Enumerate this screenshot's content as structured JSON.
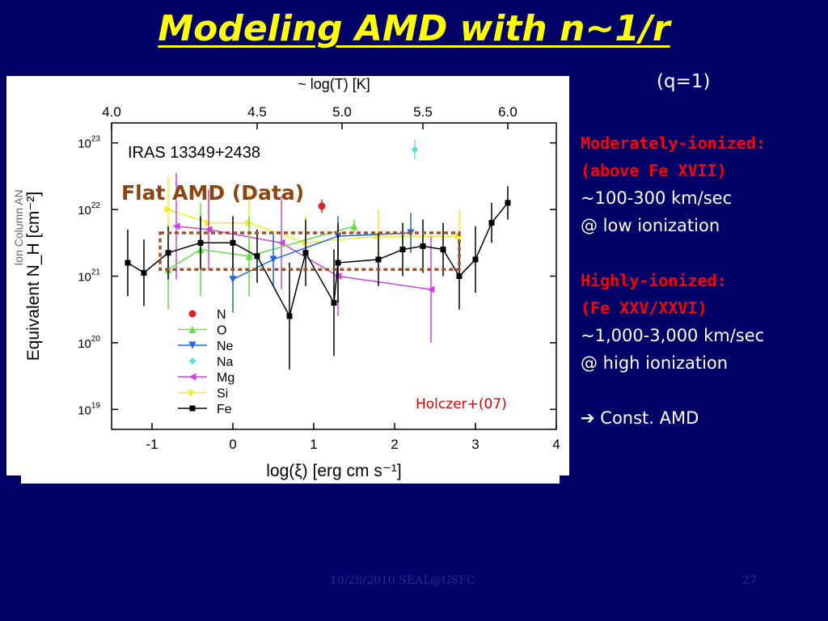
{
  "slide": {
    "title": "Modeling AMD with n~1/r",
    "q_label": "(q=1)",
    "footer_left": "10/28/2010 SEAL@GSFC",
    "footer_right": "27"
  },
  "right_text": {
    "moderate_head1": "Moderately-ionized:",
    "moderate_head2": "(above Fe XVII)",
    "moderate_speed": "~100-300 km/sec",
    "moderate_where": "@ low ionization",
    "high_head1": "Highly-ionized:",
    "high_head2": "(Fe XXV/XXVI)",
    "high_speed": "~1,000-3,000 km/sec",
    "high_where": "@ high ionization",
    "conclusion": "Const. AMD",
    "arrow_symbol": "➔"
  },
  "overlay": {
    "flat_label": "Flat AMD (Data)",
    "citation": "Holczer+(07)",
    "box_xrange": [
      -0.9,
      2.8
    ],
    "box_ylog": [
      21.1,
      21.65
    ]
  },
  "chart_data": {
    "type": "scatter",
    "title": "IRAS 13349+2438",
    "xlabel": "log(ξ) [erg cm s⁻¹]",
    "ylabel": "Equivalent  N_H [cm⁻²]",
    "ylabel_hidden": "Ion Column AN",
    "x2label": "~ log(T) [K]",
    "xlim": [
      -1.5,
      4
    ],
    "ylim_log10": [
      18.7,
      23.3
    ],
    "y_scale": "log",
    "x_ticks": [
      "-1",
      "0",
      "1",
      "2",
      "3",
      "4"
    ],
    "x_tick_values": [
      -1,
      0,
      1,
      2,
      3,
      4
    ],
    "y_ticks": [
      "10",
      "10",
      "10",
      "10",
      "10"
    ],
    "y_tick_exps": [
      "19",
      "20",
      "21",
      "22",
      "23"
    ],
    "y_tick_values": [
      19,
      20,
      21,
      22,
      23
    ],
    "x2_ticks": [
      "4.0",
      "4.5",
      "5.0",
      "5.5",
      "6.0"
    ],
    "x2_tick_xpos": [
      -1.5,
      0.3,
      1.35,
      2.35,
      3.4
    ],
    "legend_position": "bottom-left",
    "series": [
      {
        "name": "N",
        "color": "#dd2222",
        "marker": "circle",
        "points": [
          [
            1.1,
            22.05
          ]
        ],
        "err": [
          [
            0.1
          ]
        ]
      },
      {
        "name": "O",
        "color": "#66dd44",
        "marker": "triangle-up",
        "points": [
          [
            -0.8,
            21.1
          ],
          [
            -0.4,
            21.4
          ],
          [
            0.2,
            21.3
          ],
          [
            1.5,
            21.75
          ]
        ],
        "err": [
          [
            0.6
          ],
          [
            0.7
          ],
          [
            0.6
          ],
          [
            0.1
          ]
        ]
      },
      {
        "name": "Ne",
        "color": "#2266dd",
        "marker": "triangle-down",
        "points": [
          [
            0.0,
            20.95
          ],
          [
            0.5,
            21.25
          ],
          [
            1.3,
            21.6
          ],
          [
            2.2,
            21.65
          ]
        ],
        "err": [
          [
            0.5
          ],
          [
            0.4
          ],
          [
            0.3
          ],
          [
            0.3
          ]
        ]
      },
      {
        "name": "Na",
        "color": "#66dddd",
        "marker": "diamond",
        "points": [
          [
            2.25,
            22.9
          ]
        ],
        "err": [
          [
            0.15
          ]
        ]
      },
      {
        "name": "Mg",
        "color": "#cc44dd",
        "marker": "triangle-left",
        "points": [
          [
            -0.7,
            21.75
          ],
          [
            -0.3,
            21.7
          ],
          [
            0.6,
            21.5
          ],
          [
            1.3,
            21.0
          ],
          [
            2.45,
            20.8
          ]
        ],
        "err": [
          [
            0.8
          ],
          [
            0.6
          ],
          [
            0.7
          ],
          [
            0.6
          ],
          [
            0.8
          ]
        ]
      },
      {
        "name": "Si",
        "color": "#eeee22",
        "marker": "triangle-right",
        "points": [
          [
            -0.8,
            22.0
          ],
          [
            -0.3,
            21.8
          ],
          [
            0.2,
            21.8
          ],
          [
            0.9,
            21.5
          ],
          [
            1.8,
            21.6
          ],
          [
            2.8,
            21.6
          ]
        ],
        "err": [
          [
            0.5
          ],
          [
            0.5
          ],
          [
            0.5
          ],
          [
            0.4
          ],
          [
            0.4
          ],
          [
            0.4
          ]
        ]
      },
      {
        "name": "Fe",
        "color": "#000000",
        "marker": "square",
        "points": [
          [
            -1.3,
            21.2
          ],
          [
            -1.1,
            21.05
          ],
          [
            -0.8,
            21.35
          ],
          [
            -0.4,
            21.5
          ],
          [
            0.0,
            21.5
          ],
          [
            0.3,
            21.3
          ],
          [
            0.7,
            20.4
          ],
          [
            0.9,
            21.35
          ],
          [
            1.25,
            20.6
          ],
          [
            1.3,
            21.2
          ],
          [
            1.8,
            21.25
          ],
          [
            2.1,
            21.4
          ],
          [
            2.35,
            21.45
          ],
          [
            2.6,
            21.4
          ],
          [
            2.8,
            21.0
          ],
          [
            3.0,
            21.25
          ],
          [
            3.2,
            21.8
          ],
          [
            3.4,
            22.1
          ]
        ],
        "err": [
          [
            0.5
          ],
          [
            0.5
          ],
          [
            0.4
          ],
          [
            0.4
          ],
          [
            0.4
          ],
          [
            0.4
          ],
          [
            0.8
          ],
          [
            0.5
          ],
          [
            0.8
          ],
          [
            0.6
          ],
          [
            0.4
          ],
          [
            0.4
          ],
          [
            0.4
          ],
          [
            0.4
          ],
          [
            0.5
          ],
          [
            0.5
          ],
          [
            0.3
          ],
          [
            0.25
          ]
        ]
      }
    ]
  }
}
